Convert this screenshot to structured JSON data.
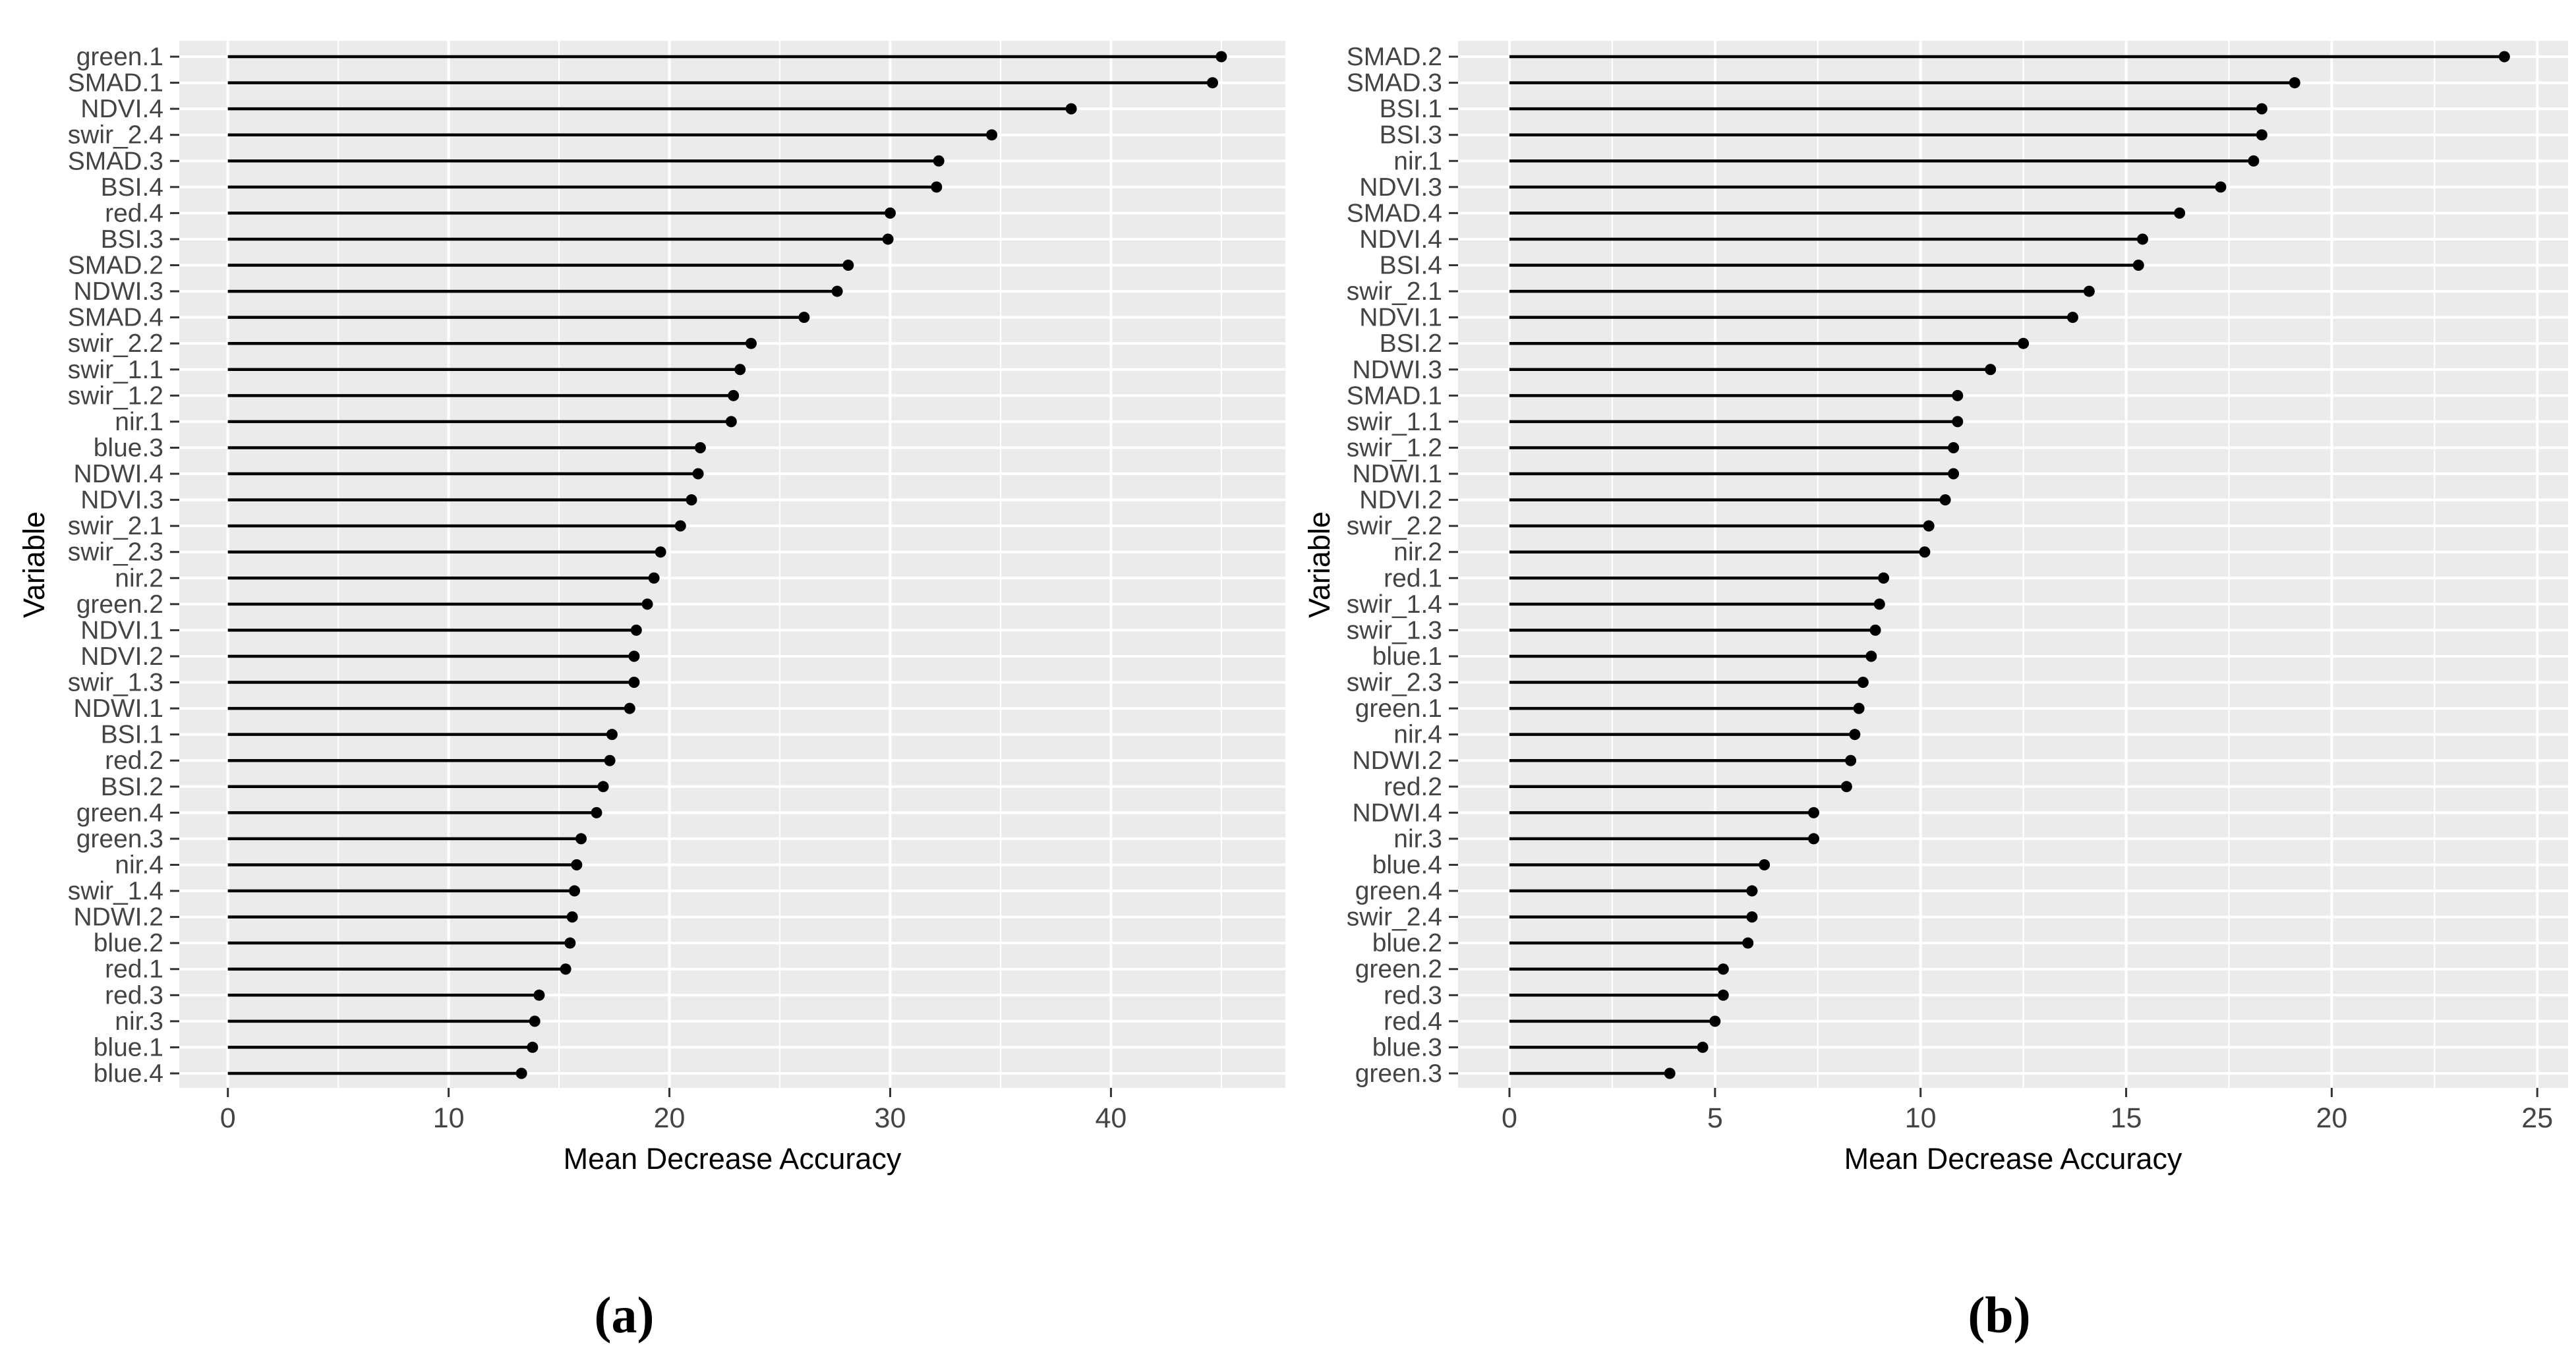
{
  "figure": {
    "captions": {
      "a": "(a)",
      "b": "(b)"
    },
    "colors": {
      "background": "#ffffff",
      "panel_bg": "#ebebeb",
      "grid": "#ffffff",
      "lollipop": "#000000",
      "axis_text": "#444444",
      "tick_mark": "#333333",
      "axis_title": "#000000"
    }
  },
  "chart_data": [
    {
      "id": "a",
      "type": "bar",
      "style": "lollipop",
      "orientation": "horizontal",
      "title": "",
      "caption": "(a)",
      "xlabel": "Mean Decrease Accuracy",
      "ylabel": "Variable",
      "grid": true,
      "legend": false,
      "xlim": [
        -2.2,
        47.9
      ],
      "xticks": [
        0,
        10,
        20,
        30,
        40
      ],
      "minor_xticks": [
        5,
        15,
        25,
        35,
        45
      ],
      "categories": [
        "green.1",
        "SMAD.1",
        "NDVI.4",
        "swir_2.4",
        "SMAD.3",
        "BSI.4",
        "red.4",
        "BSI.3",
        "SMAD.2",
        "NDWI.3",
        "SMAD.4",
        "swir_2.2",
        "swir_1.1",
        "swir_1.2",
        "nir.1",
        "blue.3",
        "NDWI.4",
        "NDVI.3",
        "swir_2.1",
        "swir_2.3",
        "nir.2",
        "green.2",
        "NDVI.1",
        "NDVI.2",
        "swir_1.3",
        "NDWI.1",
        "BSI.1",
        "red.2",
        "BSI.2",
        "green.4",
        "green.3",
        "nir.4",
        "swir_1.4",
        "NDWI.2",
        "blue.2",
        "red.1",
        "red.3",
        "nir.3",
        "blue.1",
        "blue.4"
      ],
      "values": [
        45.0,
        44.6,
        38.2,
        34.6,
        32.2,
        32.1,
        30.0,
        29.9,
        28.1,
        27.6,
        26.1,
        23.7,
        23.2,
        22.9,
        22.8,
        21.4,
        21.3,
        21.0,
        20.5,
        19.6,
        19.3,
        19.0,
        18.5,
        18.4,
        18.4,
        18.2,
        17.4,
        17.3,
        17.0,
        16.7,
        16.0,
        15.8,
        15.7,
        15.6,
        15.5,
        15.3,
        14.1,
        13.9,
        13.8,
        13.3
      ]
    },
    {
      "id": "b",
      "type": "bar",
      "style": "lollipop",
      "orientation": "horizontal",
      "title": "",
      "caption": "(b)",
      "xlabel": "Mean Decrease Accuracy",
      "ylabel": "Variable",
      "grid": true,
      "legend": false,
      "xlim": [
        -1.25,
        25.75
      ],
      "xticks": [
        0,
        5,
        10,
        15,
        20,
        25
      ],
      "minor_xticks": [
        2.5,
        7.5,
        12.5,
        17.5,
        22.5
      ],
      "categories": [
        "SMAD.2",
        "SMAD.3",
        "BSI.1",
        "BSI.3",
        "nir.1",
        "NDVI.3",
        "SMAD.4",
        "NDVI.4",
        "BSI.4",
        "swir_2.1",
        "NDVI.1",
        "BSI.2",
        "NDWI.3",
        "SMAD.1",
        "swir_1.1",
        "swir_1.2",
        "NDWI.1",
        "NDVI.2",
        "swir_2.2",
        "nir.2",
        "red.1",
        "swir_1.4",
        "swir_1.3",
        "blue.1",
        "swir_2.3",
        "green.1",
        "nir.4",
        "NDWI.2",
        "red.2",
        "NDWI.4",
        "nir.3",
        "blue.4",
        "green.4",
        "swir_2.4",
        "blue.2",
        "green.2",
        "red.3",
        "red.4",
        "blue.3",
        "green.3"
      ],
      "values": [
        24.2,
        19.1,
        18.3,
        18.3,
        18.1,
        17.3,
        16.3,
        15.4,
        15.3,
        14.1,
        13.7,
        12.5,
        11.7,
        10.9,
        10.9,
        10.8,
        10.8,
        10.6,
        10.2,
        10.1,
        9.1,
        9.0,
        8.9,
        8.8,
        8.6,
        8.5,
        8.4,
        8.3,
        8.2,
        7.4,
        7.4,
        6.2,
        5.9,
        5.9,
        5.8,
        5.2,
        5.2,
        5.0,
        4.7,
        3.9
      ]
    }
  ]
}
